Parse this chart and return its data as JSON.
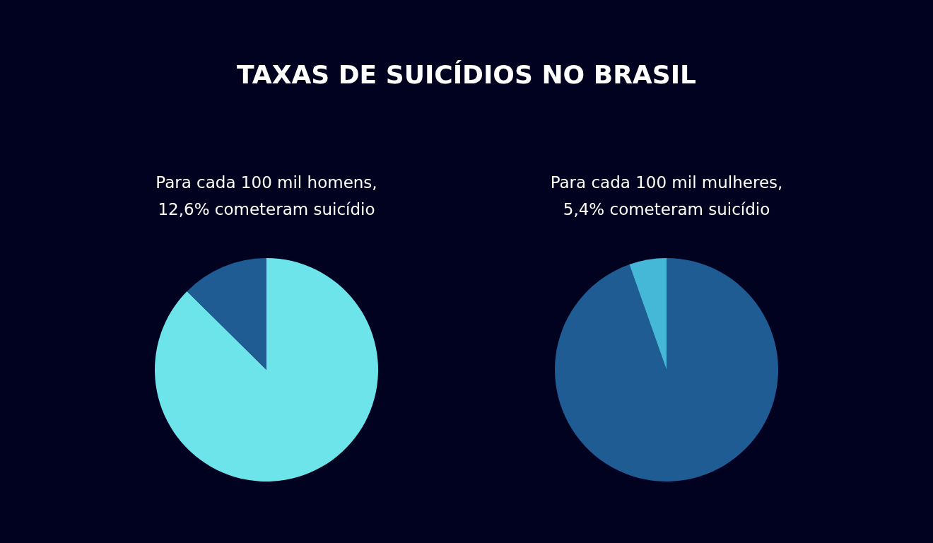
{
  "chart_data": [
    {
      "type": "pie",
      "title": "TAXAS DE SUICÍDIOS NO BRASIL",
      "subtitle": "Para cada 100 mil homens,\n12,6% cometeram suicídio",
      "categories": [
        null,
        null
      ],
      "values": [
        87.4,
        12.6
      ],
      "colors": [
        "#6de4ea",
        "#1f5c94"
      ]
    },
    {
      "type": "pie",
      "subtitle": "Para cada 100 mil mulheres,\n5,4% cometeram suicídio",
      "categories": [
        null,
        null
      ],
      "values": [
        94.6,
        5.4
      ],
      "colors": [
        "#1f5c94",
        "#45b8d8"
      ]
    }
  ]
}
